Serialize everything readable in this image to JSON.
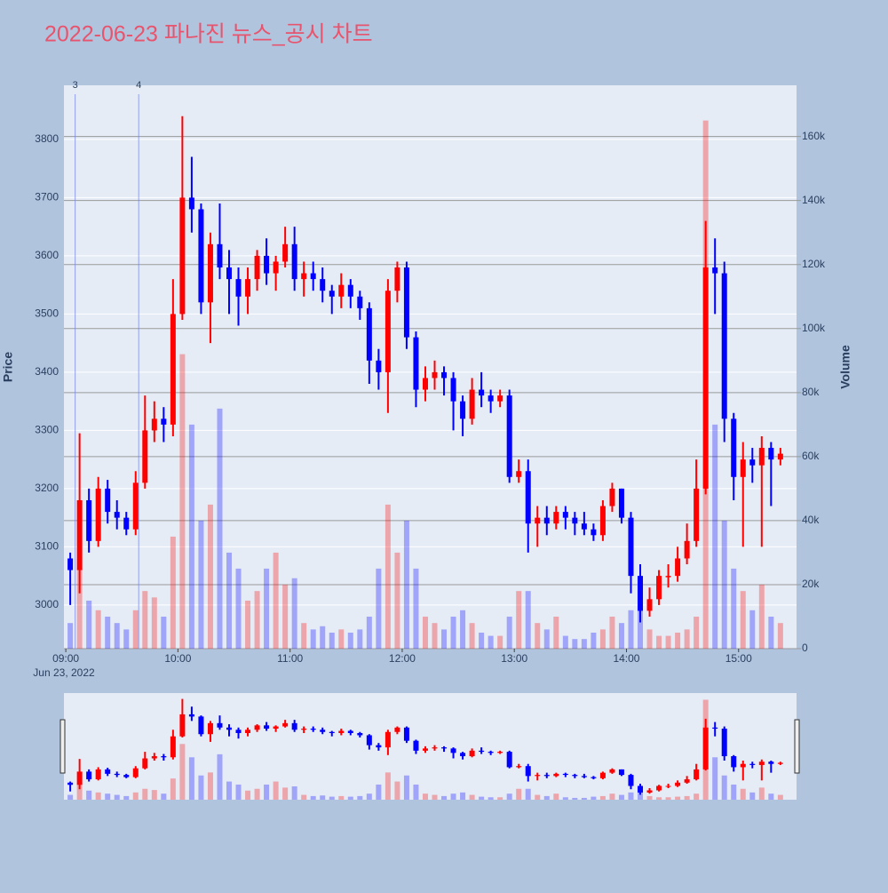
{
  "chart_data": {
    "type": "candlestick",
    "title": "2022-06-23 파나진 뉴스_공시 차트",
    "ylabel": "Price",
    "y2label": "Volume",
    "x_date_label": "Jun 23, 2022",
    "increasing_color": "#ff0000",
    "decreasing_color": "#0000ff",
    "x": [
      "09:00",
      "09:05",
      "09:10",
      "09:15",
      "09:20",
      "09:25",
      "09:30",
      "09:35",
      "09:40",
      "09:45",
      "09:50",
      "09:55",
      "10:00",
      "10:05",
      "10:10",
      "10:15",
      "10:20",
      "10:25",
      "10:30",
      "10:35",
      "10:40",
      "10:45",
      "10:50",
      "10:55",
      "11:00",
      "11:05",
      "11:10",
      "11:15",
      "11:20",
      "11:25",
      "11:30",
      "11:35",
      "11:40",
      "11:45",
      "11:50",
      "11:55",
      "12:00",
      "12:05",
      "12:10",
      "12:15",
      "12:20",
      "12:25",
      "12:30",
      "12:35",
      "12:40",
      "12:45",
      "12:50",
      "12:55",
      "13:00",
      "13:05",
      "13:10",
      "13:15",
      "13:20",
      "13:25",
      "13:30",
      "13:35",
      "13:40",
      "13:45",
      "13:50",
      "13:55",
      "14:00",
      "14:05",
      "14:10",
      "14:15",
      "14:20",
      "14:25",
      "14:30",
      "14:35",
      "14:40",
      "14:45",
      "14:50",
      "14:55",
      "15:00",
      "15:05",
      "15:10",
      "15:15",
      "15:20"
    ],
    "open": [
      3080,
      3060,
      3180,
      3110,
      3200,
      3160,
      3150,
      3130,
      3210,
      3300,
      3320,
      3310,
      3500,
      3700,
      3680,
      3520,
      3620,
      3580,
      3560,
      3530,
      3560,
      3600,
      3570,
      3590,
      3620,
      3560,
      3570,
      3560,
      3540,
      3530,
      3550,
      3530,
      3510,
      3420,
      3400,
      3540,
      3580,
      3460,
      3370,
      3390,
      3400,
      3390,
      3350,
      3320,
      3370,
      3360,
      3350,
      3360,
      3220,
      3230,
      3140,
      3150,
      3140,
      3160,
      3150,
      3140,
      3130,
      3120,
      3170,
      3200,
      3150,
      3050,
      2990,
      3010,
      3050,
      3050,
      3080,
      3110,
      3200,
      3580,
      3570,
      3320,
      3220,
      3250,
      3240,
      3270,
      3250
    ],
    "high": [
      3090,
      3295,
      3200,
      3220,
      3215,
      3180,
      3160,
      3230,
      3360,
      3350,
      3340,
      3560,
      3840,
      3770,
      3690,
      3640,
      3690,
      3610,
      3580,
      3580,
      3610,
      3630,
      3600,
      3650,
      3650,
      3590,
      3590,
      3580,
      3550,
      3570,
      3560,
      3540,
      3520,
      3440,
      3560,
      3590,
      3590,
      3470,
      3410,
      3420,
      3410,
      3400,
      3360,
      3390,
      3400,
      3370,
      3370,
      3370,
      3250,
      3250,
      3170,
      3170,
      3170,
      3170,
      3160,
      3160,
      3140,
      3180,
      3210,
      3200,
      3160,
      3070,
      3030,
      3060,
      3070,
      3100,
      3140,
      3250,
      3660,
      3630,
      3590,
      3330,
      3280,
      3270,
      3290,
      3280,
      3270
    ],
    "low": [
      3000,
      3020,
      3090,
      3100,
      3140,
      3130,
      3120,
      3120,
      3200,
      3280,
      3280,
      3290,
      3490,
      3640,
      3500,
      3450,
      3560,
      3500,
      3480,
      3500,
      3540,
      3550,
      3540,
      3580,
      3540,
      3530,
      3540,
      3520,
      3500,
      3510,
      3510,
      3490,
      3380,
      3370,
      3330,
      3520,
      3440,
      3340,
      3350,
      3370,
      3360,
      3300,
      3290,
      3310,
      3340,
      3330,
      3340,
      3210,
      3210,
      3090,
      3100,
      3120,
      3130,
      3130,
      3120,
      3120,
      3110,
      3110,
      3160,
      3140,
      3020,
      2970,
      2980,
      3000,
      3030,
      3040,
      3070,
      3100,
      3190,
      3500,
      3280,
      3180,
      3100,
      3210,
      3100,
      3170,
      3240
    ],
    "close": [
      3060,
      3180,
      3110,
      3200,
      3160,
      3150,
      3130,
      3210,
      3300,
      3320,
      3310,
      3500,
      3700,
      3680,
      3520,
      3620,
      3580,
      3560,
      3530,
      3560,
      3600,
      3570,
      3590,
      3620,
      3560,
      3570,
      3560,
      3540,
      3530,
      3550,
      3530,
      3510,
      3420,
      3400,
      3540,
      3580,
      3460,
      3370,
      3390,
      3400,
      3390,
      3350,
      3320,
      3370,
      3360,
      3350,
      3360,
      3220,
      3230,
      3140,
      3150,
      3140,
      3160,
      3150,
      3140,
      3130,
      3120,
      3170,
      3200,
      3150,
      3050,
      2990,
      3010,
      3050,
      3050,
      3080,
      3110,
      3200,
      3580,
      3570,
      3320,
      3220,
      3250,
      3240,
      3270,
      3250,
      3260
    ],
    "volume": [
      8000,
      25000,
      15000,
      12000,
      10000,
      8000,
      6000,
      12000,
      18000,
      16000,
      10000,
      35000,
      92000,
      70000,
      40000,
      45000,
      75000,
      30000,
      25000,
      15000,
      18000,
      25000,
      30000,
      20000,
      22000,
      8000,
      6000,
      7000,
      5000,
      6000,
      5000,
      6000,
      10000,
      25000,
      45000,
      30000,
      40000,
      25000,
      10000,
      8000,
      6000,
      10000,
      12000,
      8000,
      5000,
      4000,
      4000,
      10000,
      18000,
      18000,
      8000,
      6000,
      10000,
      4000,
      3000,
      3000,
      5000,
      6000,
      10000,
      8000,
      12000,
      20000,
      6000,
      4000,
      4000,
      5000,
      6000,
      10000,
      165000,
      70000,
      40000,
      25000,
      18000,
      12000,
      20000,
      10000,
      8000
    ],
    "xlim": [
      "08:59",
      "15:31"
    ],
    "xticks": [
      "09:00",
      "10:00",
      "11:00",
      "12:00",
      "13:00",
      "14:00",
      "15:00"
    ],
    "ylim": [
      2925,
      3893
    ],
    "yticks": [
      3000,
      3100,
      3200,
      3300,
      3400,
      3500,
      3600,
      3700,
      3800
    ],
    "y2lim": [
      0,
      176000
    ],
    "y2ticks": [
      0,
      {
        "value": 20000,
        "label": "20k"
      },
      {
        "value": 40000,
        "label": "40k"
      },
      {
        "value": 60000,
        "label": "60k"
      },
      {
        "value": 80000,
        "label": "80k"
      },
      {
        "value": 100000,
        "label": "100k"
      },
      {
        "value": 120000,
        "label": "120k"
      },
      {
        "value": 140000,
        "label": "140k"
      },
      {
        "value": 160000,
        "label": "160k"
      }
    ],
    "annotations": [
      {
        "x": "09:05",
        "text": "3"
      },
      {
        "x": "09:39",
        "text": "4"
      }
    ]
  }
}
